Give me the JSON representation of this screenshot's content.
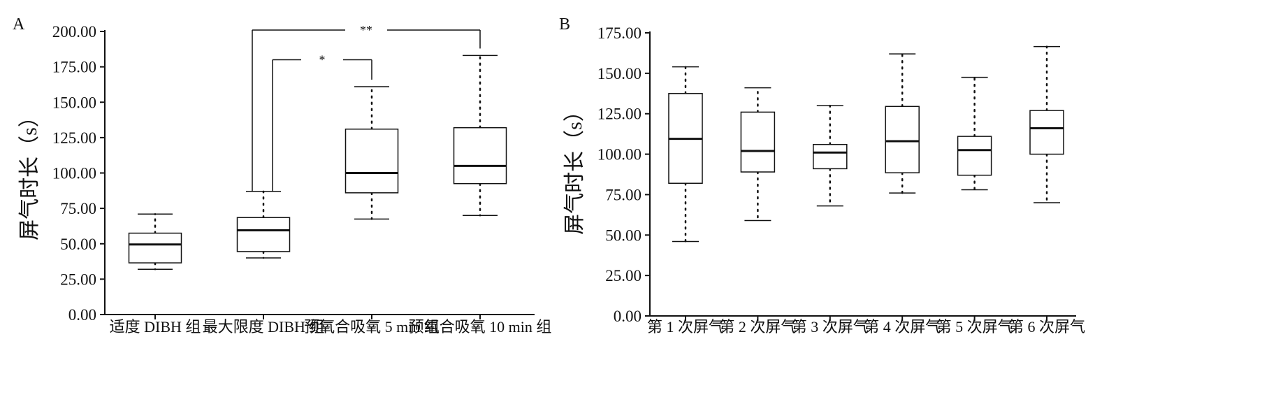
{
  "chart_data": [
    {
      "type": "box",
      "panel_label": "A",
      "ylabel": "屏气时长（s）",
      "ylim": [
        0,
        200
      ],
      "yticks": [
        "0.00",
        "25.00",
        "50.00",
        "75.00",
        "100.00",
        "125.00",
        "150.00",
        "175.00",
        "200.00"
      ],
      "categories": [
        "适度 DIBH 组",
        "最大限度 DIBH 组",
        "预氧合吸氧 5 min 组",
        "预氧合吸氧 10 min 组"
      ],
      "boxes": [
        {
          "min": 32,
          "q1": 36.5,
          "median": 49.5,
          "q3": 57.5,
          "max": 71
        },
        {
          "min": 40,
          "q1": 44.5,
          "median": 59.5,
          "q3": 68.5,
          "max": 87
        },
        {
          "min": 67.5,
          "q1": 86,
          "median": 100,
          "q3": 131,
          "max": 161
        },
        {
          "min": 70,
          "q1": 92.5,
          "median": 105,
          "q3": 132,
          "max": 183
        }
      ],
      "significance": [
        {
          "from": 1,
          "to": 2,
          "label": "*",
          "y": 180
        },
        {
          "from": 1,
          "to": 3,
          "label": "**",
          "y": 201
        }
      ],
      "grid": false
    },
    {
      "type": "box",
      "panel_label": "B",
      "ylabel": "屏气时长（s）",
      "ylim": [
        0,
        175
      ],
      "yticks": [
        "0.00",
        "25.00",
        "50.00",
        "75.00",
        "100.00",
        "125.00",
        "150.00",
        "175.00"
      ],
      "categories": [
        "第 1 次屏气",
        "第 2 次屏气",
        "第 3 次屏气",
        "第 4 次屏气",
        "第 5 次屏气",
        "第 6 次屏气"
      ],
      "boxes": [
        {
          "min": 46,
          "q1": 82,
          "median": 109.5,
          "q3": 137.5,
          "max": 154
        },
        {
          "min": 59,
          "q1": 89,
          "median": 102,
          "q3": 126,
          "max": 141
        },
        {
          "min": 68,
          "q1": 91,
          "median": 101,
          "q3": 106,
          "max": 130
        },
        {
          "min": 76,
          "q1": 88.5,
          "median": 108,
          "q3": 129.5,
          "max": 162
        },
        {
          "min": 78,
          "q1": 87,
          "median": 102.5,
          "q3": 111,
          "max": 147.5
        },
        {
          "min": 70,
          "q1": 100,
          "median": 116,
          "q3": 127,
          "max": 166.5
        }
      ],
      "grid": false
    }
  ]
}
